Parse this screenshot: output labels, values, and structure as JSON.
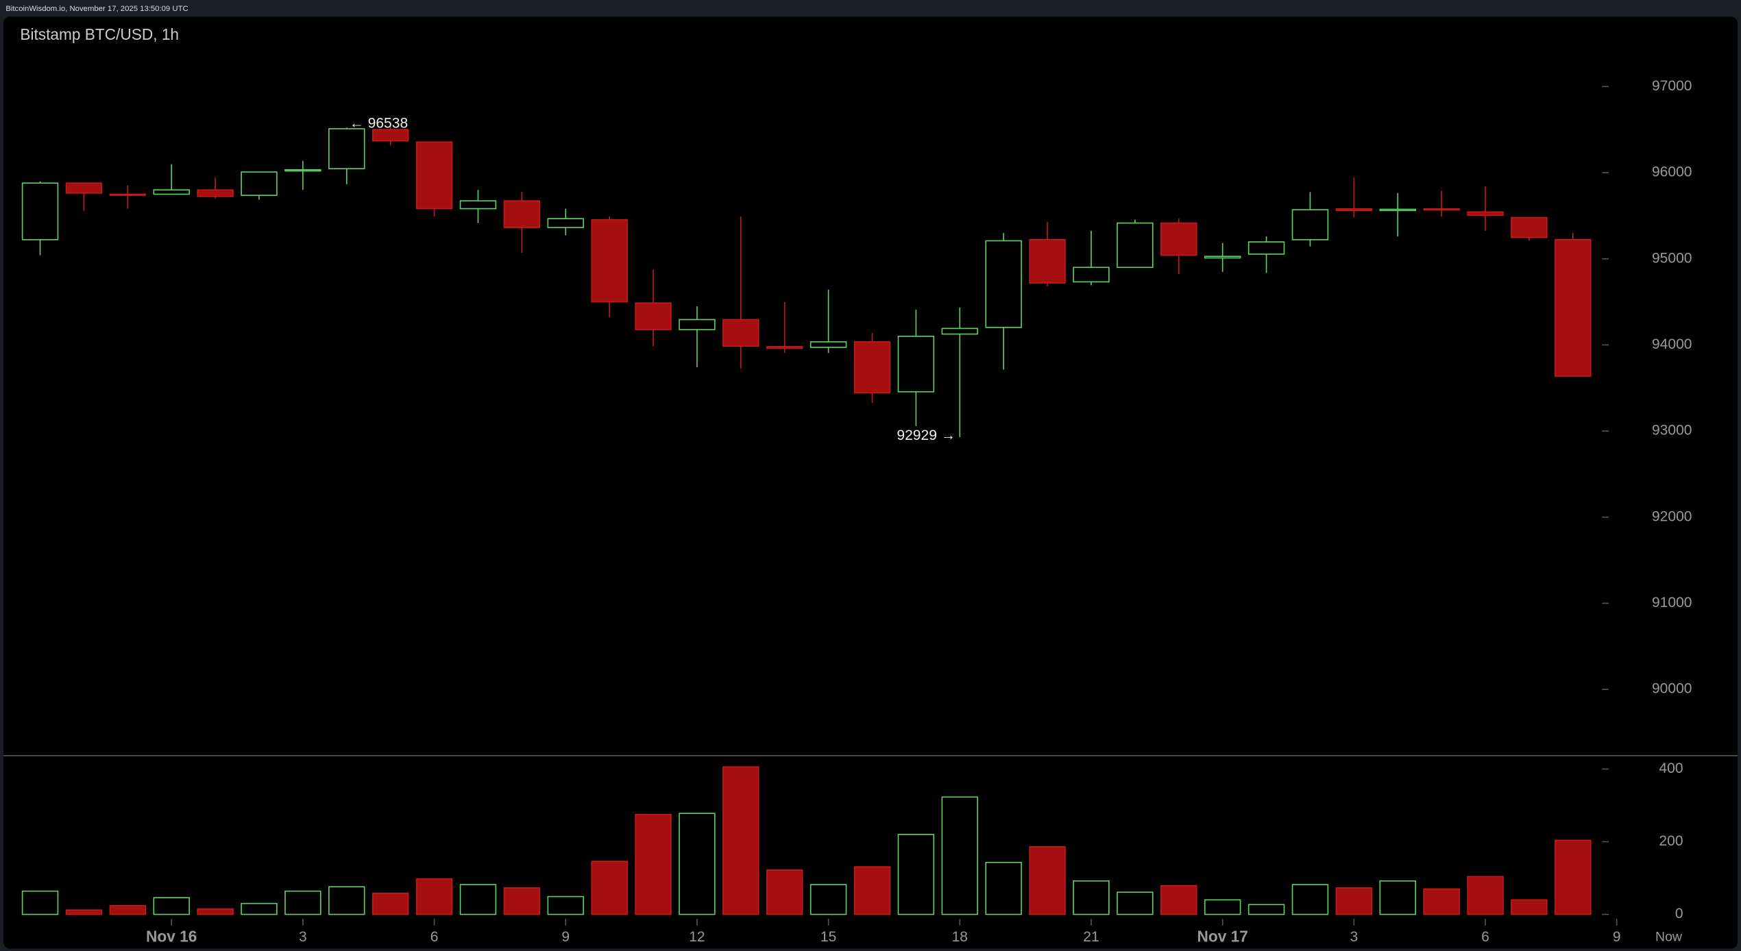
{
  "header": "BitcoinWisdom.io, November 17, 2025 13:50:09 UTC",
  "chart_data": {
    "type": "candlestick",
    "title": "Bitstamp BTC/USD, 1h",
    "categories": [
      null,
      null,
      null,
      "Nov 16",
      null,
      null,
      "3",
      null,
      null,
      "6",
      null,
      null,
      "9",
      null,
      null,
      "12",
      null,
      null,
      "15",
      null,
      null,
      "18",
      null,
      null,
      "21",
      null,
      null,
      "Nov 17",
      null,
      null,
      "3",
      null,
      null,
      "6",
      null,
      null
    ],
    "trailing_labels": [
      "9",
      "Now"
    ],
    "open": [
      95222,
      95879,
      95750,
      95750,
      95800,
      95737,
      96020,
      96046,
      96500,
      96356,
      95582,
      95673,
      95363,
      95454,
      94487,
      94178,
      94294,
      93980,
      93972,
      94036,
      93456,
      94126,
      94203,
      95222,
      94732,
      94900,
      95415,
      95010,
      95054,
      95222,
      95580,
      95560,
      95580,
      95544,
      95479,
      95222
    ],
    "high": [
      95900,
      95879,
      95853,
      96098,
      95943,
      96008,
      96137,
      96523,
      96538,
      96356,
      95800,
      95776,
      95582,
      95492,
      94874,
      94448,
      95492,
      94500,
      94642,
      94139,
      94410,
      94435,
      95299,
      95428,
      95325,
      95454,
      95466,
      95183,
      95260,
      95776,
      95943,
      95763,
      95789,
      95840,
      95479,
      95299
    ],
    "low": [
      95041,
      95557,
      95582,
      95750,
      95700,
      95686,
      95800,
      95866,
      96317,
      95492,
      95415,
      95067,
      95273,
      94320,
      93985,
      93740,
      93727,
      93907,
      93907,
      93327,
      93057,
      92929,
      93714,
      94680,
      94693,
      94900,
      94822,
      94848,
      94835,
      95144,
      95479,
      95260,
      95492,
      95325,
      95209,
      93637
    ],
    "close": [
      95879,
      95763,
      95740,
      95800,
      95724,
      96008,
      96034,
      96510,
      96369,
      95582,
      95673,
      95363,
      95466,
      94500,
      94178,
      94294,
      93985,
      93960,
      94036,
      93443,
      94100,
      94191,
      95209,
      94719,
      94900,
      95415,
      95041,
      95028,
      95196,
      95570,
      95560,
      95575,
      95570,
      95505,
      95247,
      93637
    ],
    "volume": [
      64,
      12,
      24,
      46,
      15,
      30,
      64,
      76,
      58,
      98,
      82,
      73,
      49,
      146,
      275,
      278,
      406,
      122,
      82,
      131,
      220,
      323,
      143,
      186,
      92,
      61,
      79,
      40,
      27,
      82,
      73,
      92,
      70,
      104,
      40,
      204
    ],
    "up_color": "#5fd35f",
    "down_color": "#a50f0f",
    "ylim": [
      89400,
      97500
    ],
    "yticks": [
      90000,
      91000,
      92000,
      93000,
      94000,
      95000,
      96000,
      97000
    ],
    "volume_ylim": [
      0,
      420
    ],
    "volume_yticks": [
      0,
      200,
      400
    ],
    "annotations": [
      {
        "value": 96538,
        "label": "← 96538"
      },
      {
        "value": 92929,
        "label": "92929 →"
      }
    ]
  }
}
